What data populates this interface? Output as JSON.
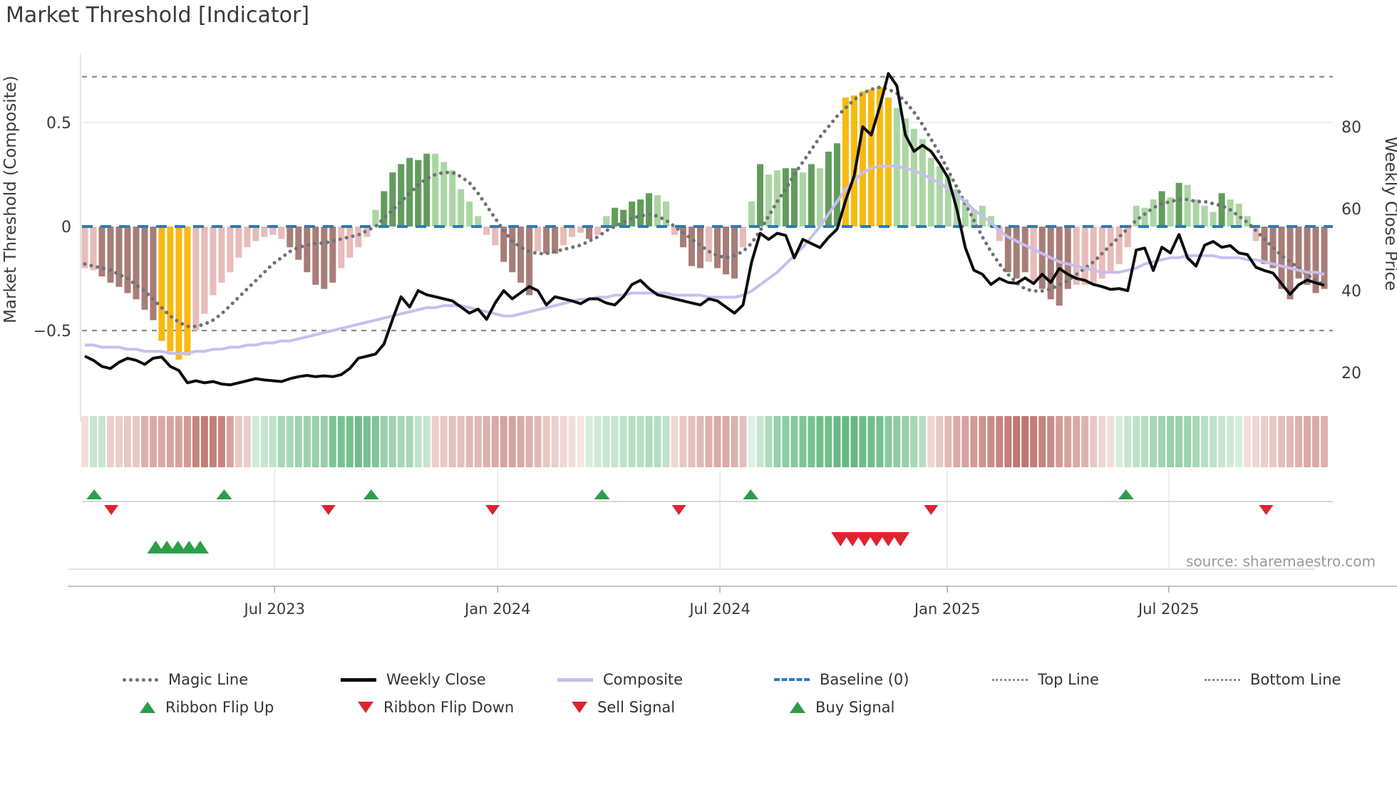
{
  "title": "Market Threshold [Indicator]",
  "source_text": "source: sharemaestro.com",
  "axes": {
    "left_label": "Market Threshold (Composite)",
    "left_ticks": [
      "0.5",
      "0",
      "−0.5"
    ],
    "left_tick_values": [
      0.5,
      0,
      -0.5
    ],
    "right_label": "Weekly Close Price",
    "right_ticks": [
      "80",
      "60",
      "40",
      "20"
    ],
    "right_tick_values": [
      80,
      60,
      40,
      20
    ],
    "x_ticks": [
      "Jul 2023",
      "Jan 2024",
      "Jul 2024",
      "Jan 2025",
      "Jul 2025"
    ],
    "x_tick_weeks": [
      22.2,
      48.3,
      74.3,
      100.9,
      126.8
    ]
  },
  "legend": {
    "row1": [
      {
        "label": "Magic Line"
      },
      {
        "label": "Weekly Close"
      },
      {
        "label": "Composite"
      },
      {
        "label": "Baseline (0)"
      },
      {
        "label": "Top Line"
      },
      {
        "label": "Bottom Line"
      }
    ],
    "row2": [
      {
        "label": "Ribbon Flip Up"
      },
      {
        "label": "Ribbon Flip Down"
      },
      {
        "label": "Sell Signal"
      },
      {
        "label": "Buy Signal"
      }
    ]
  },
  "chart_data": {
    "type": "bar",
    "subtype": "composite-indicator-with-lines",
    "x_start_label": "Feb 2023",
    "x_end_label": "Nov 2025",
    "weeks": 146,
    "left_axis_range": [
      -0.85,
      0.85
    ],
    "right_axis_range": [
      8,
      96
    ],
    "top_line": 0.72,
    "bottom_line": -0.5,
    "baseline": 0,
    "colors": {
      "bar_light_red": "#e7bcb9",
      "bar_dark_red": "#a87d78",
      "bar_light_green": "#abd6a3",
      "bar_dark_green": "#629c5c",
      "bar_extreme_yellow": "#f7ba11",
      "baseline_blue": "#2c7bb8",
      "magic_line": "#6e7278",
      "top_bottom_line": "#8c8c8c",
      "composite_line": "#c7bfec",
      "weekly_close_line": "#0d0d0d",
      "signal_green": "#2b9e4a",
      "signal_red": "#e02330",
      "ribbon_green_max": "#57b377",
      "ribbon_red_max": "#b5605b"
    },
    "threshold_bars": {
      "values": [
        -0.2,
        -0.21,
        -0.24,
        -0.27,
        -0.29,
        -0.32,
        -0.35,
        -0.4,
        -0.45,
        -0.55,
        -0.6,
        -0.64,
        -0.62,
        -0.5,
        -0.42,
        -0.33,
        -0.27,
        -0.22,
        -0.15,
        -0.1,
        -0.07,
        -0.05,
        -0.04,
        -0.06,
        -0.1,
        -0.16,
        -0.22,
        -0.28,
        -0.3,
        -0.27,
        -0.2,
        -0.15,
        -0.1,
        -0.05,
        0.08,
        0.17,
        0.26,
        0.3,
        0.33,
        0.32,
        0.35,
        0.35,
        0.31,
        0.27,
        0.18,
        0.12,
        0.05,
        -0.04,
        -0.09,
        -0.17,
        -0.22,
        -0.27,
        -0.33,
        -0.12,
        -0.13,
        -0.13,
        -0.09,
        -0.05,
        -0.03,
        -0.06,
        -0.04,
        0.05,
        0.09,
        0.08,
        0.12,
        0.13,
        0.16,
        0.15,
        0.12,
        -0.04,
        -0.1,
        -0.19,
        -0.2,
        -0.17,
        -0.2,
        -0.23,
        -0.25,
        -0.1,
        0.12,
        0.3,
        0.25,
        0.27,
        0.28,
        0.28,
        0.26,
        0.3,
        0.28,
        0.36,
        0.4,
        0.62,
        0.63,
        0.65,
        0.66,
        0.67,
        0.62,
        0.57,
        0.52,
        0.47,
        0.42,
        0.33,
        0.29,
        0.25,
        0.18,
        0.13,
        0.08,
        0.1,
        0.05,
        -0.07,
        -0.22,
        -0.25,
        -0.22,
        -0.27,
        -0.3,
        -0.35,
        -0.38,
        -0.3,
        -0.28,
        -0.28,
        -0.28,
        -0.25,
        -0.22,
        -0.18,
        -0.1,
        0.1,
        0.09,
        0.13,
        0.17,
        0.14,
        0.21,
        0.2,
        0.13,
        0.1,
        0.07,
        0.16,
        0.13,
        0.11,
        0.05,
        -0.07,
        -0.18,
        -0.2,
        -0.3,
        -0.35,
        -0.25,
        -0.28,
        -0.32,
        -0.3
      ],
      "shades": [
        "lp",
        "lp",
        "dr",
        "dr",
        "dr",
        "dr",
        "dr",
        "dr",
        "dr",
        "y",
        "y",
        "y",
        "y",
        "lp",
        "lp",
        "lp",
        "lp",
        "lp",
        "lp",
        "lp",
        "lp",
        "lp",
        "lp",
        "lp",
        "dr",
        "dr",
        "dr",
        "dr",
        "dr",
        "dr",
        "lp",
        "lp",
        "lp",
        "lp",
        "lg",
        "dg",
        "dg",
        "dg",
        "dg",
        "dg",
        "dg",
        "lg",
        "lg",
        "lg",
        "lg",
        "lg",
        "lg",
        "lp",
        "lp",
        "dr",
        "dr",
        "dr",
        "dr",
        "lp",
        "dr",
        "dr",
        "lp",
        "lp",
        "lp",
        "dr",
        "lp",
        "lg",
        "dg",
        "dg",
        "dg",
        "dg",
        "dg",
        "lg",
        "lg",
        "lp",
        "dr",
        "dr",
        "dr",
        "lp",
        "dr",
        "dr",
        "dr",
        "lp",
        "lg",
        "dg",
        "lg",
        "lg",
        "dg",
        "dg",
        "lg",
        "dg",
        "lg",
        "dg",
        "dg",
        "y",
        "y",
        "y",
        "y",
        "y",
        "y",
        "lg",
        "lg",
        "lg",
        "lg",
        "lg",
        "lg",
        "lg",
        "lg",
        "lg",
        "lg",
        "lg",
        "lg",
        "lp",
        "dr",
        "dr",
        "dr",
        "lp",
        "dr",
        "dr",
        "dr",
        "dr",
        "lp",
        "lp",
        "lp",
        "lp",
        "lp",
        "lp",
        "lp",
        "lg",
        "lg",
        "lg",
        "dg",
        "lg",
        "dg",
        "lg",
        "lg",
        "lg",
        "lg",
        "dg",
        "lg",
        "lg",
        "lg",
        "lp",
        "dr",
        "dr",
        "dr",
        "dr",
        "dr",
        "dr",
        "dr",
        "dr"
      ]
    },
    "weekly_close": [
      24.0,
      23.0,
      21.5,
      21.0,
      22.5,
      23.5,
      23.0,
      22.0,
      23.5,
      23.8,
      21.5,
      20.5,
      17.5,
      18.0,
      17.5,
      17.8,
      17.2,
      17.0,
      17.5,
      18.0,
      18.5,
      18.2,
      18.0,
      17.8,
      18.5,
      19.0,
      19.3,
      19.0,
      19.2,
      19.0,
      19.5,
      21.0,
      23.5,
      24.0,
      24.5,
      27.0,
      33.0,
      38.5,
      36.0,
      40.0,
      39.0,
      38.5,
      38.0,
      37.5,
      36.0,
      34.5,
      35.5,
      33.0,
      37.0,
      40.0,
      38.0,
      39.5,
      41.0,
      40.0,
      36.5,
      38.5,
      38.0,
      37.5,
      36.8,
      38.0,
      38.0,
      37.0,
      36.5,
      38.5,
      41.5,
      42.5,
      40.5,
      39.0,
      38.5,
      38.0,
      37.5,
      37.0,
      36.5,
      38.0,
      37.5,
      36.0,
      34.5,
      36.5,
      47.0,
      54.0,
      52.5,
      54.0,
      53.5,
      48.0,
      52.5,
      51.5,
      50.5,
      53.0,
      55.0,
      62.0,
      68.0,
      80.0,
      78.0,
      85.0,
      93.0,
      90.0,
      78.0,
      74.0,
      75.5,
      74.0,
      71.0,
      67.5,
      60.0,
      50.5,
      45.0,
      44.0,
      41.5,
      43.0,
      42.0,
      41.8,
      43.1,
      41.7,
      44.0,
      42.0,
      45.4,
      44.0,
      43.0,
      42.5,
      41.5,
      41.0,
      40.3,
      40.5,
      40.0,
      49.9,
      50.4,
      44.9,
      50.6,
      49.2,
      53.7,
      48.0,
      46.0,
      51.1,
      52.0,
      50.6,
      51.0,
      49.2,
      48.8,
      45.7,
      44.9,
      44.3,
      41.7,
      39.1,
      41.4,
      42.6,
      41.9,
      41.3
    ],
    "composite": [
      -0.57,
      -0.57,
      -0.58,
      -0.58,
      -0.58,
      -0.59,
      -0.59,
      -0.6,
      -0.6,
      -0.6,
      -0.61,
      -0.61,
      -0.61,
      -0.6,
      -0.6,
      -0.59,
      -0.59,
      -0.58,
      -0.58,
      -0.57,
      -0.57,
      -0.56,
      -0.56,
      -0.55,
      -0.55,
      -0.54,
      -0.53,
      -0.52,
      -0.51,
      -0.5,
      -0.49,
      -0.48,
      -0.47,
      -0.46,
      -0.45,
      -0.44,
      -0.43,
      -0.42,
      -0.41,
      -0.4,
      -0.39,
      -0.39,
      -0.38,
      -0.38,
      -0.38,
      -0.39,
      -0.4,
      -0.41,
      -0.42,
      -0.43,
      -0.43,
      -0.42,
      -0.41,
      -0.4,
      -0.39,
      -0.38,
      -0.37,
      -0.36,
      -0.35,
      -0.35,
      -0.34,
      -0.34,
      -0.33,
      -0.33,
      -0.32,
      -0.32,
      -0.32,
      -0.32,
      -0.32,
      -0.33,
      -0.33,
      -0.33,
      -0.33,
      -0.34,
      -0.34,
      -0.34,
      -0.34,
      -0.33,
      -0.31,
      -0.28,
      -0.25,
      -0.22,
      -0.18,
      -0.14,
      -0.1,
      -0.05,
      0.0,
      0.06,
      0.12,
      0.18,
      0.22,
      0.26,
      0.28,
      0.29,
      0.29,
      0.29,
      0.28,
      0.27,
      0.25,
      0.23,
      0.21,
      0.18,
      0.15,
      0.12,
      0.08,
      0.05,
      0.02,
      -0.02,
      -0.05,
      -0.07,
      -0.09,
      -0.11,
      -0.13,
      -0.15,
      -0.17,
      -0.18,
      -0.19,
      -0.2,
      -0.21,
      -0.22,
      -0.22,
      -0.22,
      -0.21,
      -0.2,
      -0.18,
      -0.17,
      -0.16,
      -0.15,
      -0.15,
      -0.14,
      -0.14,
      -0.14,
      -0.14,
      -0.15,
      -0.15,
      -0.15,
      -0.16,
      -0.16,
      -0.17,
      -0.18,
      -0.19,
      -0.2,
      -0.21,
      -0.22,
      -0.22,
      -0.23
    ],
    "magic_line": [
      -0.18,
      -0.19,
      -0.2,
      -0.21,
      -0.23,
      -0.25,
      -0.28,
      -0.31,
      -0.35,
      -0.39,
      -0.43,
      -0.46,
      -0.48,
      -0.48,
      -0.47,
      -0.45,
      -0.42,
      -0.38,
      -0.34,
      -0.3,
      -0.26,
      -0.22,
      -0.18,
      -0.15,
      -0.12,
      -0.1,
      -0.09,
      -0.08,
      -0.08,
      -0.07,
      -0.06,
      -0.05,
      -0.04,
      -0.02,
      0.0,
      0.04,
      0.08,
      0.12,
      0.16,
      0.2,
      0.23,
      0.25,
      0.26,
      0.26,
      0.24,
      0.21,
      0.16,
      0.1,
      0.04,
      -0.02,
      -0.07,
      -0.1,
      -0.12,
      -0.13,
      -0.13,
      -0.12,
      -0.11,
      -0.1,
      -0.09,
      -0.07,
      -0.05,
      -0.02,
      0.0,
      0.02,
      0.04,
      0.05,
      0.06,
      0.05,
      0.03,
      0.0,
      -0.03,
      -0.06,
      -0.09,
      -0.12,
      -0.14,
      -0.15,
      -0.14,
      -0.12,
      -0.08,
      -0.02,
      0.05,
      0.12,
      0.18,
      0.25,
      0.31,
      0.37,
      0.43,
      0.48,
      0.53,
      0.57,
      0.61,
      0.64,
      0.66,
      0.67,
      0.66,
      0.64,
      0.6,
      0.55,
      0.49,
      0.42,
      0.35,
      0.27,
      0.19,
      0.11,
      0.03,
      -0.05,
      -0.12,
      -0.18,
      -0.23,
      -0.27,
      -0.3,
      -0.31,
      -0.31,
      -0.3,
      -0.28,
      -0.26,
      -0.23,
      -0.2,
      -0.17,
      -0.13,
      -0.09,
      -0.05,
      -0.01,
      0.03,
      0.06,
      0.09,
      0.11,
      0.12,
      0.13,
      0.13,
      0.12,
      0.12,
      0.11,
      0.1,
      0.08,
      0.05,
      0.02,
      -0.02,
      -0.06,
      -0.1,
      -0.14,
      -0.17,
      -0.2,
      -0.23,
      -0.26,
      -0.28
    ],
    "ribbon": [
      -0.15,
      0.3,
      0.3,
      -0.25,
      -0.25,
      -0.3,
      -0.3,
      -0.45,
      -0.5,
      -0.5,
      -0.55,
      -0.55,
      -0.6,
      -0.75,
      -0.8,
      -0.8,
      -0.75,
      -0.55,
      -0.3,
      -0.25,
      0.25,
      0.3,
      0.35,
      0.5,
      0.5,
      0.55,
      0.55,
      0.6,
      0.6,
      0.75,
      0.8,
      0.8,
      0.85,
      0.8,
      0.75,
      0.6,
      0.55,
      0.5,
      0.5,
      0.35,
      0.3,
      -0.25,
      -0.3,
      -0.35,
      -0.35,
      -0.4,
      -0.4,
      -0.45,
      -0.5,
      -0.55,
      -0.55,
      -0.5,
      -0.45,
      -0.4,
      -0.3,
      -0.25,
      -0.2,
      -0.15,
      -0.1,
      0.2,
      0.25,
      0.3,
      0.3,
      0.35,
      0.4,
      0.4,
      0.45,
      0.4,
      0.35,
      -0.2,
      -0.3,
      -0.35,
      -0.4,
      -0.45,
      -0.5,
      -0.5,
      -0.45,
      -0.35,
      0.15,
      0.3,
      0.45,
      0.6,
      0.65,
      0.7,
      0.75,
      0.8,
      0.85,
      0.85,
      0.9,
      0.9,
      0.9,
      0.85,
      0.85,
      0.8,
      0.7,
      0.65,
      0.6,
      0.5,
      0.4,
      -0.2,
      -0.3,
      -0.4,
      -0.5,
      -0.55,
      -0.6,
      -0.65,
      -0.7,
      -0.75,
      -0.8,
      -0.85,
      -0.85,
      -0.8,
      -0.75,
      -0.7,
      -0.6,
      -0.55,
      -0.5,
      -0.45,
      -0.3,
      -0.2,
      -0.15,
      0.2,
      0.3,
      0.35,
      0.4,
      0.5,
      0.55,
      0.6,
      0.6,
      0.55,
      0.5,
      0.4,
      0.35,
      0.3,
      0.25,
      0.2,
      -0.15,
      -0.2,
      -0.25,
      -0.3,
      -0.35,
      -0.4,
      -0.45,
      -0.5,
      -0.5,
      -0.45
    ],
    "signals": {
      "ribbon_flip_up_weeks": [
        1.1,
        16.3,
        33.5,
        60.5,
        77.9,
        121.8
      ],
      "ribbon_flip_down_weeks": [
        3.1,
        28.5,
        47.7,
        69.5,
        99.0,
        138.2
      ],
      "buy_signal_weeks": [
        8.3,
        9.6,
        10.9,
        12.2,
        13.5
      ],
      "sell_signal_weeks": [
        88.4,
        89.8,
        91.2,
        92.6,
        94.0,
        95.4
      ]
    }
  }
}
